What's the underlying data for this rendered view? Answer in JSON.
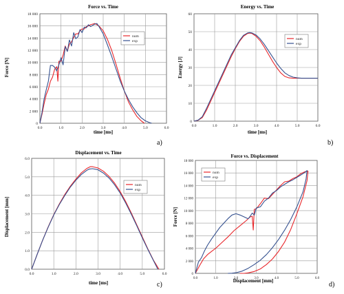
{
  "colors": {
    "num": "#e8262a",
    "exp": "#34508f",
    "grid": "#9a9a9a",
    "axis": "#555555"
  },
  "panel_labels": [
    "a)",
    "b)",
    "c)",
    "d)"
  ],
  "chart_data": [
    {
      "type": "line",
      "title": "Force vs. Time",
      "xlabel": "time [ms]",
      "ylabel": "Force [N]",
      "xlim": [
        0,
        6
      ],
      "ylim": [
        0,
        18000
      ],
      "xticks": [
        "0.0",
        "1.0",
        "2.0",
        "3.0",
        "4.0",
        "5.0",
        "6.0"
      ],
      "yticks": [
        "0",
        "2 000",
        "4 000",
        "6 000",
        "8 000",
        "10 000",
        "12 000",
        "14 000",
        "16 000",
        "18 000"
      ],
      "grid": true,
      "legend_position": "top-right",
      "series": [
        {
          "name": "num",
          "color": "#e8262a",
          "x": [
            0,
            0.1,
            0.2,
            0.3,
            0.4,
            0.5,
            0.6,
            0.7,
            0.8,
            0.85,
            0.9,
            1.0,
            1.1,
            1.2,
            1.3,
            1.4,
            1.5,
            1.6,
            1.7,
            1.8,
            1.9,
            2.0,
            2.1,
            2.2,
            2.3,
            2.4,
            2.5,
            2.6,
            2.7,
            2.8,
            3.0,
            3.2,
            3.4,
            3.6,
            3.8,
            4.0,
            4.2,
            4.4,
            4.6,
            4.8,
            4.95
          ],
          "y": [
            0,
            1500,
            3200,
            4700,
            5600,
            6900,
            7600,
            8900,
            9300,
            6900,
            10200,
            10200,
            11200,
            12700,
            11900,
            13000,
            13400,
            14100,
            14700,
            14700,
            15200,
            15500,
            15500,
            15900,
            16000,
            16200,
            16300,
            16400,
            16200,
            16000,
            15200,
            13800,
            12000,
            9800,
            7500,
            5300,
            3500,
            2200,
            1100,
            400,
            0
          ]
        },
        {
          "name": "exp",
          "color": "#34508f",
          "x": [
            0,
            0.1,
            0.2,
            0.3,
            0.4,
            0.5,
            0.6,
            0.7,
            0.8,
            0.9,
            1.0,
            1.1,
            1.2,
            1.3,
            1.4,
            1.5,
            1.6,
            1.7,
            1.8,
            1.9,
            2.0,
            2.1,
            2.2,
            2.3,
            2.4,
            2.5,
            2.6,
            2.7,
            2.8,
            3.0,
            3.2,
            3.4,
            3.6,
            3.8,
            4.0,
            4.2,
            4.4,
            4.6,
            4.8,
            5.0,
            5.2,
            5.3
          ],
          "y": [
            0,
            1800,
            4000,
            5500,
            6900,
            9500,
            9500,
            9200,
            8600,
            9600,
            10800,
            9600,
            12600,
            11800,
            13700,
            12700,
            14900,
            13900,
            14200,
            15400,
            14900,
            15800,
            15700,
            16200,
            15900,
            16100,
            16300,
            16400,
            15900,
            14700,
            12900,
            11000,
            9000,
            7000,
            5300,
            3900,
            2700,
            1700,
            900,
            400,
            100,
            0
          ]
        }
      ]
    },
    {
      "type": "line",
      "title": "Energy vs. Time",
      "xlabel": "time [ms]",
      "ylabel": "Energy [J]",
      "xlim": [
        0,
        6
      ],
      "ylim": [
        0,
        60
      ],
      "xticks": [
        "0.0",
        "1.0",
        "2.0",
        "3.0",
        "4.0",
        "5.0",
        "6.0"
      ],
      "yticks": [
        "0",
        "10",
        "20",
        "30",
        "40",
        "50",
        "60"
      ],
      "grid": true,
      "legend_position": "top-right",
      "series": [
        {
          "name": "num",
          "color": "#e8262a",
          "x": [
            0,
            0.2,
            0.4,
            0.6,
            0.8,
            1.0,
            1.2,
            1.4,
            1.6,
            1.8,
            2.0,
            2.2,
            2.4,
            2.6,
            2.7,
            2.8,
            3.0,
            3.2,
            3.4,
            3.6,
            3.8,
            4.0,
            4.2,
            4.4,
            4.6,
            4.8,
            5.0,
            6.0
          ],
          "y": [
            0,
            0.5,
            2,
            6,
            11,
            16,
            21,
            26,
            31,
            36,
            40.5,
            44.5,
            47.5,
            49,
            49.2,
            49,
            47.5,
            45,
            41.5,
            37.5,
            33.5,
            30,
            27,
            25,
            24.2,
            24,
            24,
            24
          ]
        },
        {
          "name": "exp",
          "color": "#34508f",
          "x": [
            0,
            0.2,
            0.4,
            0.6,
            0.8,
            1.0,
            1.2,
            1.4,
            1.6,
            1.8,
            2.0,
            2.2,
            2.4,
            2.6,
            2.7,
            2.8,
            3.0,
            3.2,
            3.4,
            3.6,
            3.8,
            4.0,
            4.2,
            4.4,
            4.6,
            4.8,
            5.0,
            5.2,
            6.0
          ],
          "y": [
            0,
            0.6,
            2.5,
            7,
            12,
            17,
            22,
            27,
            32,
            37,
            41,
            45,
            48,
            49.3,
            49.5,
            49.3,
            48.2,
            46,
            43,
            39.5,
            36,
            32.5,
            29.5,
            27,
            25.5,
            24.6,
            24.2,
            24,
            24
          ]
        }
      ]
    },
    {
      "type": "line",
      "title": "Displacement vs. Time",
      "xlabel": "time [ms]",
      "ylabel": "Displacement [mm]",
      "xlim": [
        0,
        6
      ],
      "ylim": [
        0,
        6
      ],
      "xticks": [
        "0.0",
        "1.0",
        "2.0",
        "3.0",
        "4.0",
        "5.0",
        "6.0"
      ],
      "yticks": [
        "0.0",
        "1.0",
        "2.0",
        "3.0",
        "4.0",
        "5.0",
        "6.0"
      ],
      "grid": true,
      "legend_position": "top-right",
      "series": [
        {
          "name": "num",
          "color": "#e8262a",
          "x": [
            0,
            0.25,
            0.5,
            0.75,
            1.0,
            1.25,
            1.5,
            1.75,
            2.0,
            2.25,
            2.5,
            2.65,
            2.75,
            3.0,
            3.25,
            3.5,
            3.75,
            4.0,
            4.25,
            4.5,
            4.75,
            5.0,
            5.25,
            5.5,
            5.75
          ],
          "y": [
            0,
            0.8,
            1.58,
            2.3,
            2.96,
            3.53,
            4.05,
            4.5,
            4.88,
            5.22,
            5.46,
            5.55,
            5.55,
            5.48,
            5.3,
            5.02,
            4.66,
            4.2,
            3.66,
            3.05,
            2.4,
            1.75,
            1.1,
            0.5,
            0
          ]
        },
        {
          "name": "exp",
          "color": "#34508f",
          "x": [
            0,
            0.25,
            0.5,
            0.75,
            1.0,
            1.25,
            1.5,
            1.75,
            2.0,
            2.25,
            2.5,
            2.6,
            2.75,
            3.0,
            3.25,
            3.5,
            3.75,
            4.0,
            4.25,
            4.5,
            4.75,
            5.0,
            5.25,
            5.5,
            5.7
          ],
          "y": [
            0,
            0.8,
            1.58,
            2.28,
            2.94,
            3.5,
            4.0,
            4.45,
            4.82,
            5.13,
            5.36,
            5.42,
            5.44,
            5.38,
            5.2,
            4.93,
            4.57,
            4.12,
            3.58,
            2.98,
            2.35,
            1.7,
            1.07,
            0.48,
            0
          ]
        }
      ]
    },
    {
      "type": "line",
      "title": "Force vs. Displacement",
      "xlabel": "Displacement [mm]",
      "ylabel": "Force [N]",
      "xlim": [
        0,
        6
      ],
      "ylim": [
        0,
        18000
      ],
      "xticks": [
        "0.0",
        "1.0",
        "2.0",
        "3.0",
        "4.0",
        "5.0",
        "6.0"
      ],
      "yticks": [
        "0",
        "2 000",
        "4 000",
        "6 000",
        "8 000",
        "10 000",
        "12 000",
        "14 000",
        "16 000",
        "18 000"
      ],
      "grid": true,
      "legend_position": "top-left",
      "series": [
        {
          "name": "num",
          "color": "#e8262a",
          "x": [
            0,
            0.2,
            0.4,
            0.6,
            0.8,
            1.0,
            1.3,
            1.6,
            1.9,
            2.2,
            2.5,
            2.7,
            2.8,
            2.85,
            2.9,
            3.0,
            3.2,
            3.4,
            3.6,
            3.8,
            4.0,
            4.2,
            4.4,
            4.6,
            4.8,
            5.0,
            5.2,
            5.4,
            5.55,
            5.5,
            5.3,
            5.0,
            4.7,
            4.4,
            4.1,
            3.8,
            3.5,
            3.2,
            2.9,
            2.6,
            2.4,
            2.2
          ],
          "y": [
            0,
            1200,
            2300,
            3000,
            3500,
            4000,
            4900,
            5800,
            6800,
            7600,
            8400,
            9000,
            9100,
            6900,
            10200,
            10300,
            11100,
            12000,
            11900,
            12600,
            13300,
            14000,
            14600,
            14700,
            15100,
            15400,
            15900,
            16200,
            16300,
            14800,
            12200,
            9500,
            7000,
            5000,
            3500,
            2300,
            1400,
            700,
            300,
            80,
            0,
            0
          ]
        },
        {
          "name": "exp",
          "color": "#34508f",
          "x": [
            0,
            0.15,
            0.3,
            0.45,
            0.6,
            0.8,
            1.0,
            1.2,
            1.4,
            1.6,
            1.8,
            2.0,
            2.2,
            2.4,
            2.6,
            2.7,
            2.8,
            2.9,
            3.0,
            3.2,
            3.4,
            3.6,
            3.8,
            4.0,
            4.2,
            4.4,
            4.6,
            4.8,
            5.0,
            5.2,
            5.4,
            5.5,
            5.45,
            5.3,
            5.0,
            4.7,
            4.4,
            4.1,
            3.8,
            3.5,
            3.2,
            2.9,
            2.6,
            2.3,
            2.0,
            1.8,
            1.6
          ],
          "y": [
            0,
            1800,
            2500,
            3600,
            4500,
            5500,
            6400,
            7300,
            8000,
            8700,
            9300,
            9500,
            9300,
            9000,
            8700,
            9100,
            9600,
            9300,
            10400,
            10600,
            11500,
            12000,
            12800,
            13200,
            13800,
            14200,
            14600,
            14900,
            15300,
            15700,
            16100,
            16400,
            15000,
            13000,
            10600,
            8600,
            6900,
            5400,
            4100,
            3000,
            2100,
            1400,
            800,
            350,
            100,
            20,
            0
          ]
        }
      ]
    }
  ]
}
